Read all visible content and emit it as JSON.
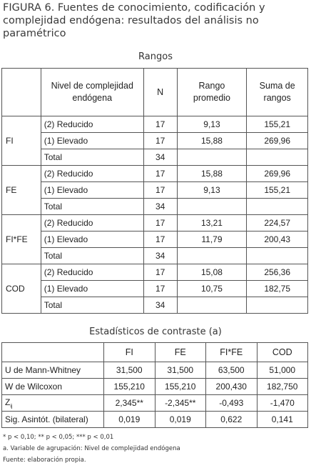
{
  "figure": {
    "title": "FIGURA 6. Fuentes de conocimiento, codificación y complejidad endógena: resultados del análisis no paramétrico"
  },
  "ranks": {
    "heading": "Rangos",
    "headers": {
      "level": "Nivel de complejidad endógena",
      "n": "N",
      "mean": "Rango promedio",
      "sum": "Suma de rangos"
    },
    "groups": [
      {
        "var": "FI",
        "rows": [
          {
            "level": "(2) Reducido",
            "n": "17",
            "mean": "9,13",
            "sum": "155,21"
          },
          {
            "level": "(1) Elevado",
            "n": "17",
            "mean": "15,88",
            "sum": "269,96"
          },
          {
            "level": "Total",
            "n": "34",
            "mean": "",
            "sum": ""
          }
        ]
      },
      {
        "var": "FE",
        "rows": [
          {
            "level": "(2) Reducido",
            "n": "17",
            "mean": "15,88",
            "sum": "269,96"
          },
          {
            "level": "(1) Elevado",
            "n": "17",
            "mean": "9,13",
            "sum": "155,21"
          },
          {
            "level": "Total",
            "n": "34",
            "mean": "",
            "sum": ""
          }
        ]
      },
      {
        "var": "FI*FE",
        "rows": [
          {
            "level": "(2) Reducido",
            "n": "17",
            "mean": "13,21",
            "sum": "224,57"
          },
          {
            "level": "(1) Elevado",
            "n": "17",
            "mean": "11,79",
            "sum": "200,43"
          },
          {
            "level": "Total",
            "n": "34",
            "mean": "",
            "sum": ""
          }
        ]
      },
      {
        "var": "COD",
        "rows": [
          {
            "level": "(2) Reducido",
            "n": "17",
            "mean": "15,08",
            "sum": "256,36"
          },
          {
            "level": "(1) Elevado",
            "n": "17",
            "mean": "10,75",
            "sum": "182,75"
          },
          {
            "level": "Total",
            "n": "34",
            "mean": "",
            "sum": ""
          }
        ]
      }
    ]
  },
  "stats": {
    "heading": "Estadísticos de contraste (a)",
    "columns": [
      "FI",
      "FE",
      "FI*FE",
      "COD"
    ],
    "rows": [
      {
        "label": "U de Mann-Whitney",
        "sub": "",
        "values": [
          "31,500",
          "31,500",
          "63,500",
          "51,000"
        ]
      },
      {
        "label": "W de Wilcoxon",
        "sub": "",
        "values": [
          "155,210",
          "155,210",
          "200,430",
          "182,750"
        ]
      },
      {
        "label": "Z",
        "sub": "ij",
        "values": [
          "2,345**",
          "-2,345**",
          "-0,493",
          "-1,470"
        ]
      },
      {
        "label": "Sig. Asintót. (bilateral)",
        "sub": "",
        "values": [
          "0,019",
          "0,019",
          "0,622",
          "0,141"
        ]
      }
    ]
  },
  "notes": {
    "significance": "* p < 0,10; ** p < 0,05; *** p < 0,01",
    "footnote_a": "a. Variable de agrupación: Nivel de complejidad endógena",
    "source": "Fuente: elaboración propia."
  }
}
